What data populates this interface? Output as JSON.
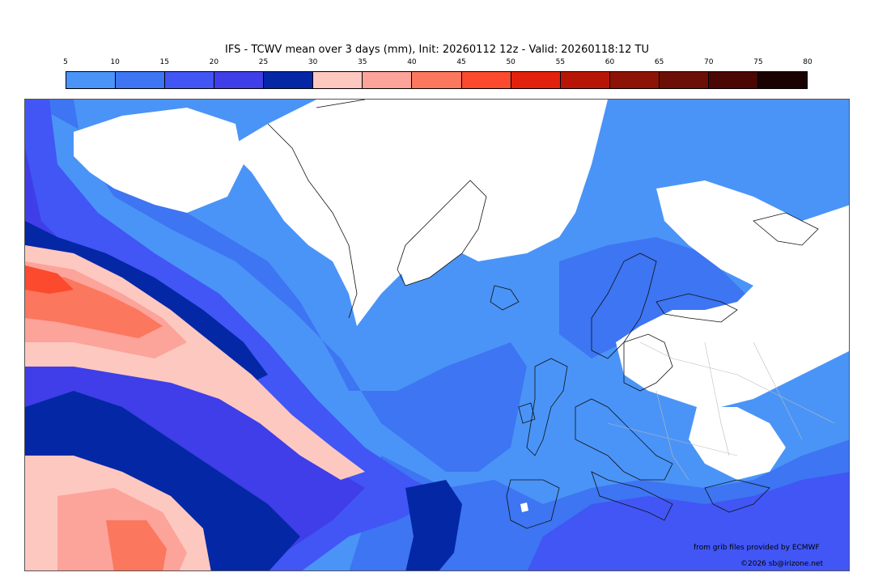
{
  "title": "IFS - TCWV mean over 3 days (mm), Init: 20260112 12z - Valid: 20260118:12 TU",
  "colorbar": {
    "ticks": [
      "5",
      "10",
      "15",
      "20",
      "25",
      "30",
      "35",
      "40",
      "45",
      "50",
      "55",
      "60",
      "65",
      "70",
      "75",
      "80"
    ],
    "colors": [
      "#4a94f7",
      "#3d75f2",
      "#4156f5",
      "#3f3ee8",
      "#0427a6",
      "#fdc8c0",
      "#fca39a",
      "#fb775e",
      "#fb4a2e",
      "#e2220c",
      "#b71606",
      "#8d1306",
      "#6c0f07",
      "#4a0704",
      "#1b0202"
    ]
  },
  "credits": {
    "source": "from grib files provided by ECMWF",
    "copyright": "©2026 sb@irizone.net"
  }
}
